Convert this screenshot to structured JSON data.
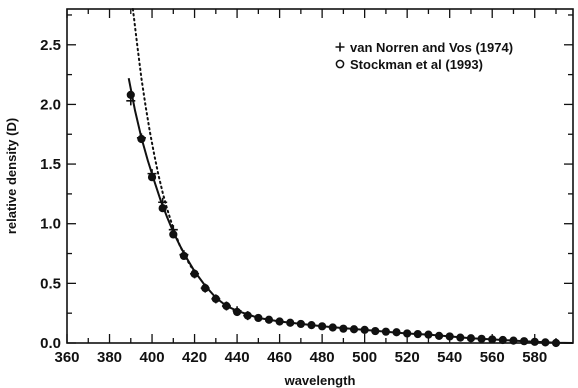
{
  "chart_data": {
    "type": "scatter",
    "xlabel": "wavelength",
    "ylabel": "relative density (D)",
    "xlim": [
      360,
      598
    ],
    "ylim": [
      0.0,
      2.8
    ],
    "x_ticks": [
      360,
      380,
      400,
      420,
      440,
      460,
      480,
      500,
      520,
      540,
      560,
      580
    ],
    "y_ticks": [
      0.0,
      0.5,
      1.0,
      1.5,
      2.0,
      2.5
    ],
    "x_tick_labels": [
      "360",
      "380",
      "400",
      "420",
      "440",
      "460",
      "480",
      "500",
      "520",
      "540",
      "560",
      "580"
    ],
    "y_tick_labels": [
      "0.0",
      "0.5",
      "1.0",
      "1.5",
      "2.0",
      "2.5"
    ],
    "grid": false,
    "legend_position": "top-right",
    "series": [
      {
        "name": "van Norren and Vos (1974)",
        "marker": "plus",
        "x": [
          390,
          395,
          400,
          405,
          410,
          415,
          420,
          425,
          430,
          435,
          440,
          445
        ],
        "y": [
          2.03,
          1.72,
          1.42,
          1.18,
          0.95,
          0.74,
          0.58,
          0.46,
          0.37,
          0.31,
          0.27,
          0.23
        ]
      },
      {
        "name": "Stockman et al (1993)",
        "marker": "circle",
        "x": [
          390,
          395,
          400,
          405,
          410,
          415,
          420,
          425,
          430,
          435,
          440,
          445,
          450,
          455,
          460,
          465,
          470,
          475,
          480,
          485,
          490,
          495,
          500,
          505,
          510,
          515,
          520,
          525,
          530,
          535,
          540,
          545,
          550,
          555,
          560,
          565,
          570,
          575,
          580,
          585,
          590
        ],
        "y": [
          2.08,
          1.71,
          1.39,
          1.13,
          0.91,
          0.73,
          0.58,
          0.46,
          0.37,
          0.31,
          0.26,
          0.23,
          0.21,
          0.195,
          0.18,
          0.17,
          0.16,
          0.15,
          0.14,
          0.13,
          0.12,
          0.115,
          0.11,
          0.1,
          0.095,
          0.09,
          0.08,
          0.075,
          0.07,
          0.06,
          0.055,
          0.045,
          0.04,
          0.035,
          0.03,
          0.025,
          0.02,
          0.015,
          0.01,
          0.005,
          0.0
        ]
      },
      {
        "name": "",
        "style": "solid",
        "x": [
          389,
          392,
          395,
          398,
          401,
          404,
          407,
          410,
          413,
          416,
          420,
          425,
          430,
          435,
          440,
          450,
          460,
          470,
          480,
          490,
          500,
          510,
          520,
          530,
          540,
          550,
          560,
          570,
          580,
          590,
          598
        ],
        "y": [
          2.22,
          1.95,
          1.72,
          1.53,
          1.36,
          1.2,
          1.06,
          0.93,
          0.82,
          0.72,
          0.6,
          0.48,
          0.38,
          0.31,
          0.27,
          0.21,
          0.18,
          0.16,
          0.14,
          0.125,
          0.11,
          0.095,
          0.08,
          0.07,
          0.055,
          0.04,
          0.03,
          0.02,
          0.01,
          0.002,
          0.0
        ]
      },
      {
        "name": "",
        "style": "dotted",
        "x": [
          391,
          393,
          395,
          397,
          399,
          401,
          403,
          405,
          407,
          410,
          413,
          416,
          420
        ],
        "y": [
          2.8,
          2.5,
          2.22,
          1.98,
          1.77,
          1.58,
          1.41,
          1.26,
          1.13,
          0.96,
          0.82,
          0.71,
          0.59
        ]
      }
    ]
  }
}
